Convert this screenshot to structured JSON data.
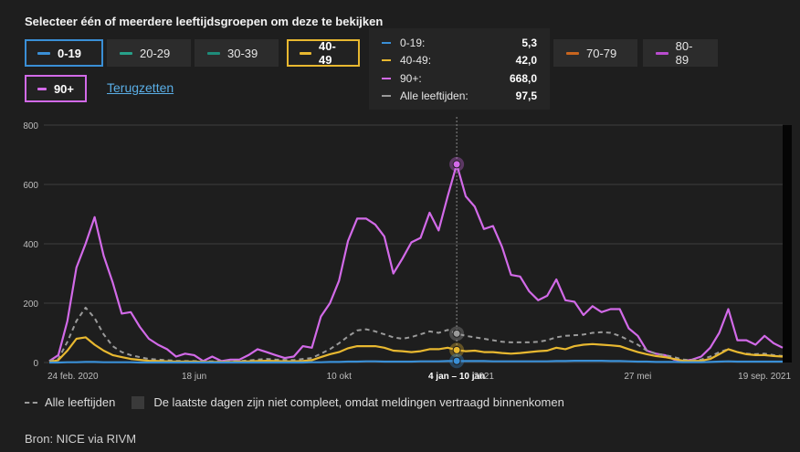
{
  "header": {
    "title": "Selecteer één of meerdere leeftijdsgroepen om deze te bekijken"
  },
  "filters": [
    {
      "label": "0-19",
      "color": "#3a8fd6",
      "active": true
    },
    {
      "label": "20-29",
      "color": "#27a18a",
      "active": false
    },
    {
      "label": "30-39",
      "color": "#1e8c7a",
      "active": false
    },
    {
      "label": "40-49",
      "color": "#e8b830",
      "active": true
    },
    {
      "label": "70-79",
      "color": "#c8651e",
      "active": false
    },
    {
      "label": "80-89",
      "color": "#b94ccf",
      "active": false
    },
    {
      "label": "90+",
      "color": "#d26ae8",
      "active": true
    }
  ],
  "reset_label": "Terugzetten",
  "tooltip": {
    "rows": [
      {
        "label": "0-19:",
        "value": "5,3",
        "color": "#3a8fd6"
      },
      {
        "label": "40-49:",
        "value": "42,0",
        "color": "#e8b830"
      },
      {
        "label": "90+:",
        "value": "668,0",
        "color": "#d26ae8"
      },
      {
        "label": "Alle leeftijden:",
        "value": "97,5",
        "color": "#9a9a9a"
      }
    ],
    "period_label": "4 jan – 10 jan"
  },
  "legend": {
    "all_ages": "Alle leeftijden",
    "incomplete": "De laatste dagen zijn niet compleet, omdat meldingen vertraagd binnenkomen"
  },
  "source": "Bron: NICE via RIVM",
  "chart_data": {
    "type": "line",
    "ylim": [
      0,
      800
    ],
    "yticks": [
      0,
      200,
      400,
      600,
      800
    ],
    "x_weeks": 82,
    "highlight_index": 45,
    "xtick_labels": [
      {
        "index": 0,
        "label": "24 feb. 2020"
      },
      {
        "index": 16,
        "label": "18 jun"
      },
      {
        "index": 32,
        "label": "10 okt"
      },
      {
        "index": 45,
        "label": "4 jan – 10 jan"
      },
      {
        "index": 48,
        "label": "2021"
      },
      {
        "index": 65,
        "label": "27 mei"
      },
      {
        "index": 81,
        "label": "19 sep. 2021"
      }
    ],
    "series": [
      {
        "name": "90+",
        "color": "#d26ae8",
        "style": "solid",
        "values": [
          5,
          25,
          140,
          320,
          400,
          490,
          360,
          270,
          165,
          170,
          120,
          80,
          60,
          45,
          20,
          30,
          25,
          5,
          20,
          5,
          10,
          10,
          25,
          45,
          35,
          25,
          15,
          20,
          55,
          50,
          155,
          200,
          275,
          410,
          485,
          485,
          465,
          425,
          300,
          350,
          405,
          420,
          505,
          445,
          560,
          668,
          560,
          525,
          450,
          460,
          390,
          295,
          290,
          240,
          210,
          225,
          280,
          210,
          205,
          160,
          190,
          170,
          180,
          180,
          115,
          90,
          40,
          30,
          25,
          10,
          5,
          10,
          20,
          50,
          100,
          180,
          75,
          75,
          60,
          90,
          65,
          50
        ]
      },
      {
        "name": "Alle leeftijden",
        "color": "#9a9a9a",
        "style": "dashed",
        "values": [
          5,
          12,
          70,
          140,
          185,
          150,
          95,
          55,
          35,
          25,
          18,
          12,
          10,
          8,
          6,
          5,
          5,
          4,
          4,
          4,
          5,
          5,
          7,
          10,
          12,
          10,
          9,
          8,
          12,
          15,
          30,
          45,
          65,
          88,
          108,
          112,
          105,
          95,
          85,
          80,
          86,
          95,
          105,
          100,
          110,
          97.5,
          90,
          85,
          80,
          75,
          70,
          68,
          68,
          68,
          70,
          75,
          85,
          90,
          92,
          94,
          100,
          102,
          100,
          90,
          75,
          60,
          40,
          30,
          25,
          18,
          10,
          8,
          10,
          20,
          35,
          45,
          35,
          30,
          28,
          30,
          25,
          22
        ]
      },
      {
        "name": "40-49",
        "color": "#e8b830",
        "style": "solid",
        "values": [
          2,
          8,
          40,
          80,
          85,
          60,
          40,
          25,
          18,
          12,
          9,
          6,
          5,
          4,
          3,
          3,
          3,
          2,
          2,
          2,
          2,
          3,
          4,
          5,
          6,
          5,
          4,
          4,
          5,
          8,
          18,
          28,
          35,
          48,
          55,
          55,
          55,
          50,
          40,
          38,
          35,
          38,
          45,
          45,
          50,
          42,
          38,
          40,
          35,
          35,
          32,
          30,
          32,
          35,
          38,
          40,
          50,
          45,
          55,
          60,
          62,
          60,
          58,
          55,
          45,
          35,
          28,
          22,
          18,
          12,
          6,
          5,
          6,
          12,
          28,
          45,
          35,
          28,
          25,
          25,
          22,
          20
        ]
      },
      {
        "name": "0-19",
        "color": "#3a8fd6",
        "style": "solid",
        "values": [
          0,
          0,
          1,
          1,
          2,
          2,
          1,
          1,
          1,
          1,
          0,
          0,
          0,
          0,
          0,
          0,
          0,
          0,
          0,
          0,
          0,
          0,
          0,
          0,
          0,
          0,
          0,
          0,
          0,
          1,
          1,
          2,
          2,
          3,
          3,
          4,
          4,
          3,
          3,
          3,
          3,
          4,
          4,
          4,
          5,
          5.3,
          5,
          5,
          5,
          4,
          4,
          4,
          4,
          4,
          4,
          4,
          5,
          5,
          6,
          6,
          6,
          6,
          5,
          5,
          4,
          3,
          3,
          2,
          2,
          2,
          1,
          1,
          1,
          2,
          3,
          4,
          3,
          3,
          3,
          3,
          3,
          3
        ]
      }
    ]
  }
}
